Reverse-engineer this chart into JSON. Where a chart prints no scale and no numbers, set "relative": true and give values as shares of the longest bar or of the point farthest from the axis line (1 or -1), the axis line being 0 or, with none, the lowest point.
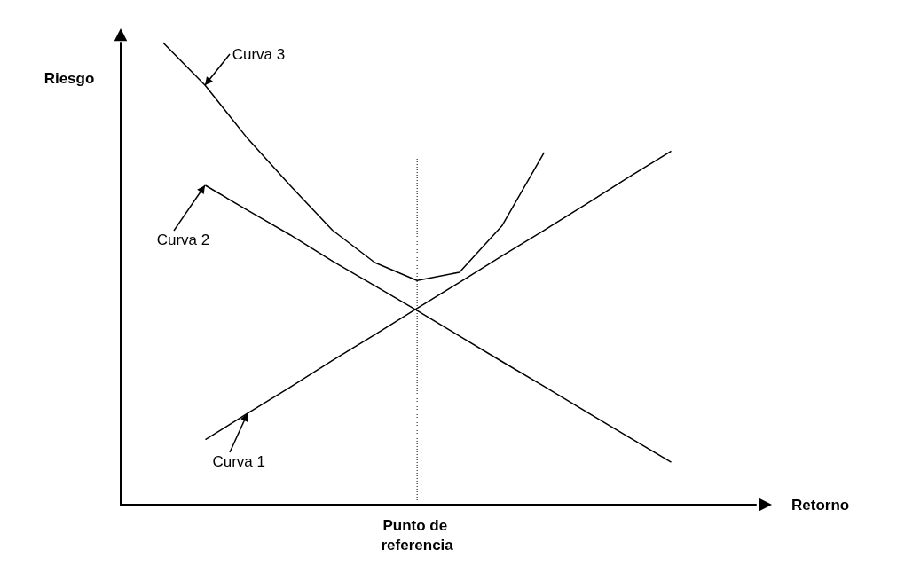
{
  "chart_data": {
    "type": "line",
    "relative": true,
    "xlabel": "Retorno",
    "ylabel": "Riesgo",
    "legend": false,
    "grid": false,
    "marker": "none",
    "line_style": "solid",
    "categories": [
      null,
      null,
      null,
      null,
      null,
      null,
      null,
      null,
      null,
      null,
      null,
      null,
      null,
      null,
      null,
      null
    ],
    "series": [
      {
        "name": "Curva 1",
        "color": "#000000",
        "values": [
          null,
          null,
          0.141,
          0.198,
          0.254,
          0.312,
          0.368,
          0.425,
          0.481,
          0.538,
          0.594,
          0.651,
          0.709,
          0.765,
          null,
          null
        ]
      },
      {
        "name": "Curva 2",
        "color": "#000000",
        "values": [
          null,
          null,
          0.691,
          0.637,
          0.584,
          0.527,
          0.474,
          0.42,
          0.365,
          0.31,
          0.256,
          0.201,
          0.146,
          0.092,
          null,
          null
        ]
      },
      {
        "name": "Curva 3",
        "color": "#000000",
        "values": [
          null,
          1.0,
          0.907,
          0.792,
          0.691,
          0.594,
          0.524,
          0.485,
          0.503,
          0.603,
          0.762,
          null,
          null,
          null,
          null,
          null
        ]
      }
    ],
    "annotations": [
      "Punto de referencia"
    ]
  }
}
